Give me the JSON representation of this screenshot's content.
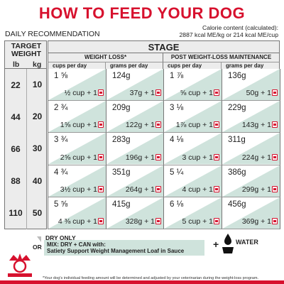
{
  "title": "HOW TO FEED YOUR DOG",
  "daily_recommendation": "DAILY RECOMMENDATION",
  "calorie": {
    "line1": "Calorie content (calculated):",
    "line2": "2887 kcal ME/kg or 214 kcal ME/cup"
  },
  "table": {
    "target_weight": "TARGET WEIGHT",
    "lb": "lb",
    "kg": "kg",
    "stage": "STAGE",
    "weight_loss": "WEIGHT LOSS*",
    "maintenance": "POST WEIGHT-LOSS MAINTENANCE",
    "cups_per_day": "cups per day",
    "grams_per_day": "grams per day",
    "rows": [
      {
        "lb": "22",
        "kg": "10",
        "wl_cups": "1 ⅝",
        "wl_cups_mix": "½ cup + 1",
        "wl_grams": "124g",
        "wl_grams_mix": "37g + 1",
        "m_cups": "1 ⅞",
        "m_cups_mix": "⅝ cup + 1",
        "m_grams": "136g",
        "m_grams_mix": "50g + 1"
      },
      {
        "lb": "44",
        "kg": "20",
        "wl_cups": "2 ¾",
        "wl_cups_mix": "1⅝ cup + 1",
        "wl_grams": "209g",
        "wl_grams_mix": "122g + 1",
        "m_cups": "3 ⅛",
        "m_cups_mix": "1⅞ cup + 1",
        "m_grams": "229g",
        "m_grams_mix": "143g + 1"
      },
      {
        "lb": "66",
        "kg": "30",
        "wl_cups": "3 ¾",
        "wl_cups_mix": "2⅝ cup + 1",
        "wl_grams": "283g",
        "wl_grams_mix": "196g + 1",
        "m_cups": "4 ⅛",
        "m_cups_mix": "3 cup + 1",
        "m_grams": "311g",
        "m_grams_mix": "224g + 1"
      },
      {
        "lb": "88",
        "kg": "40",
        "wl_cups": "4 ¾",
        "wl_cups_mix": "3½ cup + 1",
        "wl_grams": "351g",
        "wl_grams_mix": "264g + 1",
        "m_cups": "5 ¼",
        "m_cups_mix": "4 cup + 1",
        "m_grams": "386g",
        "m_grams_mix": "299g + 1"
      },
      {
        "lb": "110",
        "kg": "50",
        "wl_cups": "5 ⅝",
        "wl_cups_mix": "4 ⅜ cup + 1",
        "wl_grams": "415g",
        "wl_grams_mix": "328g + 1",
        "m_cups": "6 ⅛",
        "m_cups_mix": "5 cup + 1",
        "m_grams": "456g",
        "m_grams_mix": "369g + 1"
      }
    ]
  },
  "legend": {
    "dry_only": "DRY ONLY",
    "or": "OR",
    "mix_line1": "MIX: DRY + CAN with:",
    "mix_line2": "Satiety Support Weight Management Loaf in Sauce",
    "plus": "+",
    "water": "WATER"
  },
  "footnote": "*Your dog's individual feeding amount will be determined and adjusted by your veterinarian during the weight-loss program.",
  "colors": {
    "brand_red": "#d7112e",
    "mix_green": "#cfe3dc",
    "header_grey": "#ececec"
  }
}
